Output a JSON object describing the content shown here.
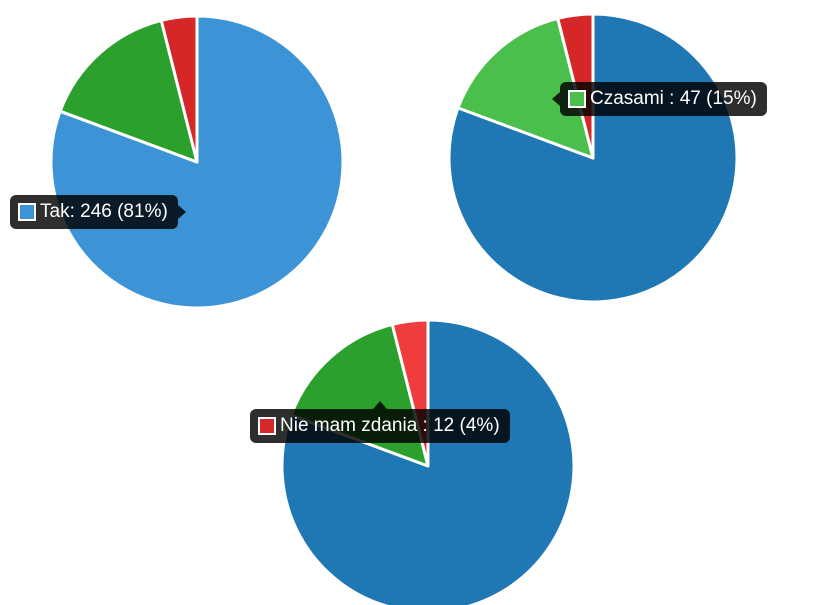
{
  "chart_data": [
    {
      "type": "pie",
      "categories": [
        "Tak",
        "Czasami",
        "Nie mam zdania"
      ],
      "values": [
        246,
        47,
        12
      ],
      "percents": [
        81,
        15,
        4
      ],
      "colors": [
        "#3c93d6",
        "#2ca02c",
        "#d62728"
      ],
      "highlighted": 0,
      "tooltip": "Tak: 246 (81%)"
    },
    {
      "type": "pie",
      "categories": [
        "Tak",
        "Czasami",
        "Nie mam zdania"
      ],
      "values": [
        246,
        47,
        12
      ],
      "percents": [
        81,
        15,
        4
      ],
      "colors": [
        "#1f77b4",
        "#4bbf4b",
        "#d62728"
      ],
      "highlighted": 1,
      "tooltip": "Czasami : 47 (15%)"
    },
    {
      "type": "pie",
      "categories": [
        "Tak",
        "Czasami",
        "Nie mam zdania"
      ],
      "values": [
        246,
        47,
        12
      ],
      "percents": [
        81,
        15,
        4
      ],
      "colors": [
        "#1f77b4",
        "#2ca02c",
        "#f03c3c"
      ],
      "highlighted": 2,
      "tooltip": "Nie mam zdania : 12 (4%)"
    }
  ]
}
